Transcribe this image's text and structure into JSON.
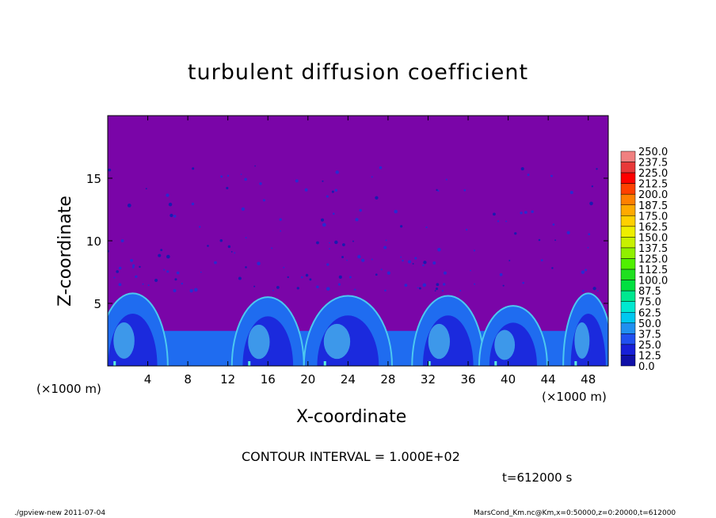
{
  "colors": {
    "background": "#7a05a8",
    "blob_dark": "#1a1ad8",
    "blob_mid": "#1f6cf0",
    "blob_light": "#4cc8f0",
    "blob_cyan": "#5ef0e0"
  },
  "labels": {
    "title": "turbulent diffusion coefficient",
    "xlabel": "X-coordinate",
    "ylabel": "Z-coordinate",
    "x_units_left": "(×1000 m)",
    "x_units_right": "(×1000 m)",
    "contour_interval": "CONTOUR INTERVAL = 1.000E+02",
    "time": "t=612000 s",
    "footer_left": "./gpview-new  2011-07-04",
    "footer_right": "MarsCond_Km.nc@Km,x=0:50000,z=0:20000,t=612000"
  },
  "chart_data": {
    "type": "heatmap",
    "title": "turbulent diffusion coefficient",
    "xlabel": "X-coordinate",
    "ylabel": "Z-coordinate",
    "xlim": [
      0,
      50
    ],
    "ylim": [
      0,
      20
    ],
    "x_ticks": [
      4,
      8,
      12,
      16,
      20,
      24,
      28,
      32,
      36,
      40,
      44,
      48
    ],
    "y_ticks": [
      5,
      10,
      15
    ],
    "x_tick_labels": [
      "4",
      "8",
      "12",
      "16",
      "20",
      "24",
      "28",
      "32",
      "36",
      "40",
      "44",
      "48"
    ],
    "y_tick_labels": [
      "5",
      "10",
      "15"
    ],
    "colorbar_levels": [
      "250.0",
      "237.5",
      "225.0",
      "212.5",
      "200.0",
      "187.5",
      "175.0",
      "162.5",
      "150.0",
      "137.5",
      "125.0",
      "112.5",
      "100.0",
      "87.5",
      "75.0",
      "62.5",
      "50.0",
      "37.5",
      "25.0",
      "12.5",
      "0.0"
    ],
    "colorbar_colors": [
      "#f08080",
      "#e83838",
      "#ff0000",
      "#ff4000",
      "#ff8000",
      "#ffaa00",
      "#ffd000",
      "#eeee00",
      "#c8f000",
      "#90f000",
      "#50f000",
      "#20e020",
      "#00e040",
      "#00e890",
      "#00e8d0",
      "#00c8f0",
      "#2090f0",
      "#2050f0",
      "#1820d8",
      "#1010a8",
      "#7000a0"
    ],
    "boundary_layer": [
      {
        "x_center": 2.5,
        "x_halfwidth": 3.5,
        "top": 5.8
      },
      {
        "x_center": 16,
        "x_halfwidth": 3.6,
        "top": 5.5
      },
      {
        "x_center": 24,
        "x_halfwidth": 4.4,
        "top": 5.6
      },
      {
        "x_center": 34,
        "x_halfwidth": 3.6,
        "top": 5.6
      },
      {
        "x_center": 40.5,
        "x_halfwidth": 3.4,
        "top": 4.8
      },
      {
        "x_center": 48,
        "x_halfwidth": 2.5,
        "top": 5.8
      }
    ],
    "low_layer": {
      "x_start": 0,
      "x_end": 50,
      "top": 2.8
    }
  }
}
